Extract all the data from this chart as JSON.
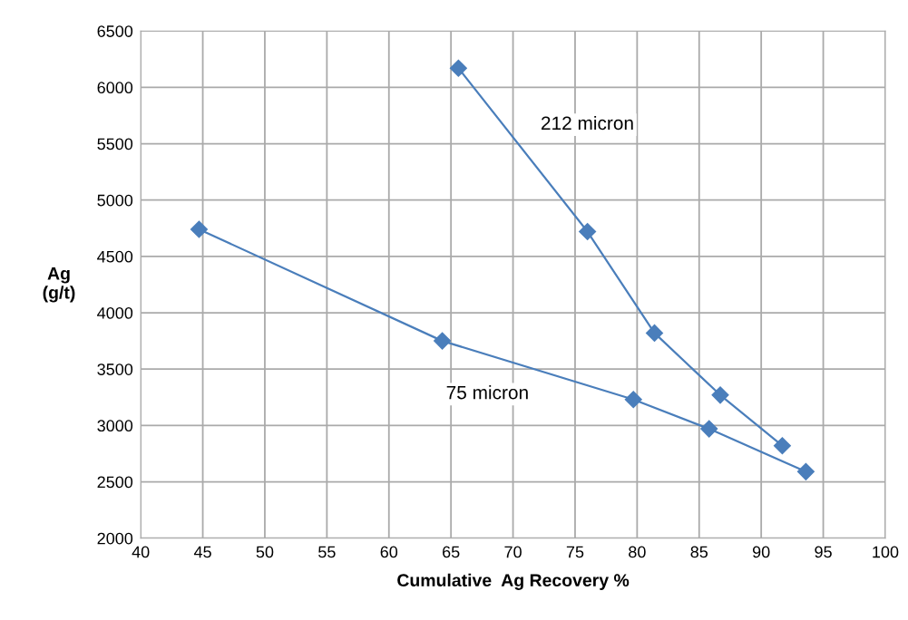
{
  "chart_data": {
    "type": "line",
    "xlabel": "Cumulative  Ag Recovery %",
    "ylabel": "Ag\n(g/t)",
    "series": [
      {
        "name": "212 micron",
        "color": "#4a7ebb",
        "x": [
          65.6,
          76.0,
          81.4,
          86.7,
          91.7
        ],
        "values": [
          6170,
          4720,
          3820,
          3270,
          2820
        ]
      },
      {
        "name": "75 micron",
        "color": "#4a7ebb",
        "x": [
          44.7,
          64.3,
          79.7,
          85.8,
          93.6
        ],
        "values": [
          4740,
          3750,
          3230,
          2970,
          2590
        ]
      }
    ],
    "xlim": [
      40,
      100
    ],
    "xticks": [
      40,
      45,
      50,
      55,
      60,
      65,
      70,
      75,
      80,
      85,
      90,
      95,
      100
    ],
    "ylim": [
      2000,
      6500
    ],
    "yticks": [
      2000,
      2500,
      3000,
      3500,
      4000,
      4500,
      5000,
      5500,
      6000,
      6500
    ],
    "grid": true,
    "marker": "diamond",
    "line_style": "solid"
  }
}
